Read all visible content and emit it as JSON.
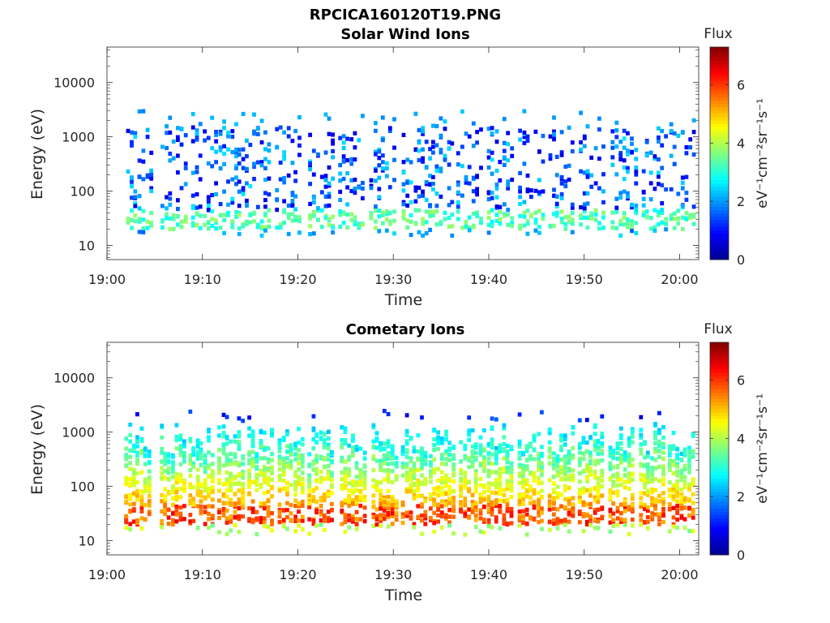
{
  "figure": {
    "title": "RPCICA160120T19.PNG"
  },
  "colors": {
    "colormap": [
      "#00008f",
      "#0000ff",
      "#0080ff",
      "#00ffff",
      "#80ff80",
      "#ffff00",
      "#ff8000",
      "#ff0000",
      "#800000"
    ]
  },
  "chart_data": [
    {
      "type": "heatmap",
      "title": "Solar Wind Ions",
      "xlabel": "Time",
      "ylabel": "Energy (eV)",
      "x_tick_labels": [
        "19:00",
        "19:10",
        "19:20",
        "19:30",
        "19:40",
        "19:50",
        "20:00"
      ],
      "x_range": [
        "19:00",
        "20:02"
      ],
      "y_scale": "log",
      "y_tick_labels": [
        "10",
        "100",
        "1000",
        "10000"
      ],
      "y_range": [
        5.5,
        45000
      ],
      "colorbar": {
        "title": "Flux",
        "label": "eV⁻¹cm⁻²sr⁻¹s⁻¹",
        "range": [
          0,
          7.3
        ],
        "tick_labels": [
          "0",
          "2",
          "4",
          "6"
        ]
      },
      "bursts_minutes": [
        3.2,
        6.8,
        10.0,
        12.9,
        15.6,
        18.8,
        22.3,
        25.4,
        28.7,
        32.1,
        34.8,
        37.8,
        41.0,
        44.3,
        47.4,
        50.6,
        54.0,
        57.2,
        60.1
      ],
      "band": {
        "energy_ev": [
          20,
          45
        ],
        "typical_flux": 3.3
      },
      "upper_scatter": {
        "energy_ev": [
          45,
          3000
        ],
        "typical_flux": 1.8
      }
    },
    {
      "type": "heatmap",
      "title": "Cometary Ions",
      "xlabel": "Time",
      "ylabel": "Energy (eV)",
      "x_tick_labels": [
        "19:00",
        "19:10",
        "19:20",
        "19:30",
        "19:40",
        "19:50",
        "20:00"
      ],
      "x_range": [
        "19:00",
        "20:02"
      ],
      "y_scale": "log",
      "y_tick_labels": [
        "10",
        "100",
        "1000",
        "10000"
      ],
      "y_range": [
        5.5,
        45000
      ],
      "colorbar": {
        "title": "Flux",
        "label": "eV⁻¹cm⁻²sr⁻¹s⁻¹",
        "range": [
          0,
          7.3
        ],
        "tick_labels": [
          "0",
          "2",
          "4",
          "6"
        ]
      },
      "bursts_minutes": [
        3.0,
        6.7,
        9.7,
        12.8,
        15.9,
        19.1,
        22.2,
        25.6,
        28.9,
        32.0,
        34.9,
        38.1,
        41.0,
        44.2,
        47.4,
        50.5,
        53.7,
        56.9,
        60.0
      ],
      "band": {
        "energy_ev": [
          20,
          45
        ],
        "typical_flux": 5.8
      },
      "upper_cloud": {
        "energy_ev": [
          45,
          1500
        ],
        "typical_flux": [
          3.0,
          5.0
        ]
      }
    }
  ]
}
